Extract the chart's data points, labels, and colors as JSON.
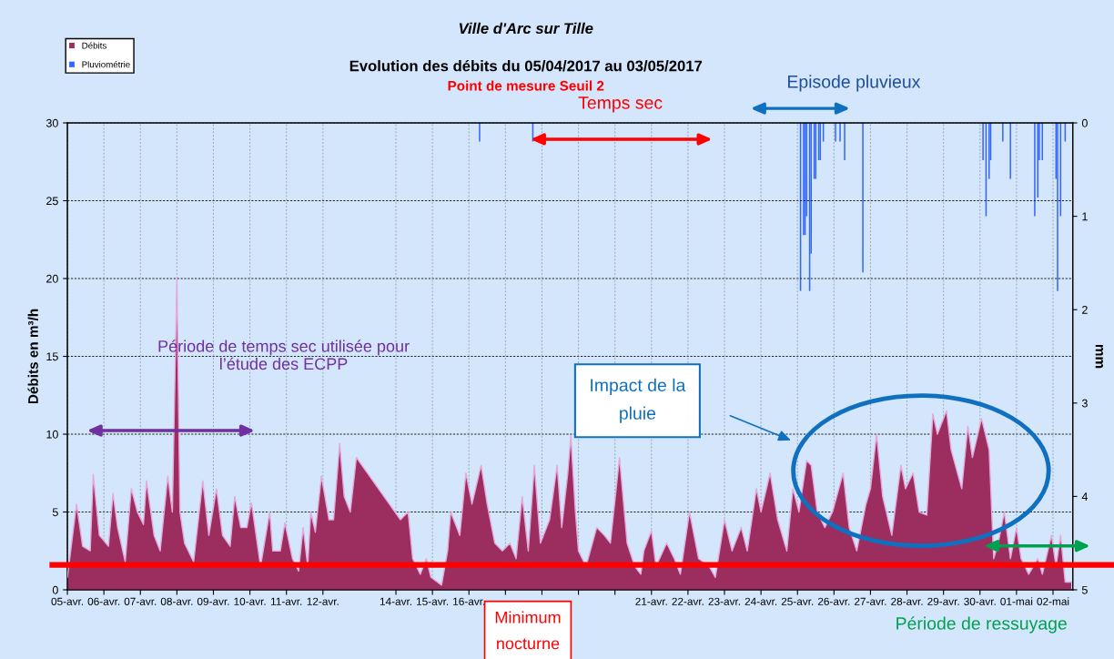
{
  "chart_data": {
    "type": "area",
    "title": "Ville d'Arc sur Tille",
    "subtitle": "Evolution des débits du 05/04/2017 au 03/05/2017",
    "ylabel": "Débits en m³/h",
    "y2label": "mm",
    "annotations": [
      "Point de mesure Seuil 2",
      "Temps sec",
      "Episode pluvieux",
      "Période de temps sec utilisée pour\nl’étude des ECPP",
      "Impact de la\npluie",
      "Période de ressuyage"
    ],
    "xlim": [
      "2017-04-05T00:00",
      "2017-05-02T13:00"
    ],
    "xticks": [
      {
        "value": "2017-04-05",
        "label": "05-avr."
      },
      {
        "value": "2017-04-06",
        "label": "06-avr."
      },
      {
        "value": "2017-04-07",
        "label": "07-avr."
      },
      {
        "value": "2017-04-08",
        "label": "08-avr."
      },
      {
        "value": "2017-04-09",
        "label": "09-avr."
      },
      {
        "value": "2017-04-10",
        "label": "10-avr."
      },
      {
        "value": "2017-04-11",
        "label": "11-avr."
      },
      {
        "value": "2017-04-12",
        "label": "12-avr."
      },
      {
        "value": "2017-04-14",
        "label": "14-avr."
      },
      {
        "value": "2017-04-15",
        "label": "15-avr."
      },
      {
        "value": "2017-04-16",
        "label": "16-avr."
      },
      {
        "value": "2017-04-17",
        "label": null
      },
      {
        "value": "2017-04-18",
        "label": null
      },
      {
        "value": "2017-04-19",
        "label": null
      },
      {
        "value": "2017-04-20",
        "label": null
      },
      {
        "value": "2017-04-21",
        "label": "21-avr."
      },
      {
        "value": "2017-04-22",
        "label": "22-avr."
      },
      {
        "value": "2017-04-23",
        "label": "23-avr."
      },
      {
        "value": "2017-04-24",
        "label": "24-avr."
      },
      {
        "value": "2017-04-25",
        "label": "25-avr."
      },
      {
        "value": "2017-04-26",
        "label": "26-avr."
      },
      {
        "value": "2017-04-27",
        "label": "27-avr."
      },
      {
        "value": "2017-04-28",
        "label": "28-avr."
      },
      {
        "value": "2017-04-29",
        "label": "29-avr."
      },
      {
        "value": "2017-04-30",
        "label": "30-avr."
      },
      {
        "value": "2017-05-01",
        "label": "01-mai"
      },
      {
        "value": "2017-05-02",
        "label": "02-mai"
      }
    ],
    "ylim": [
      0,
      30
    ],
    "yticks": [
      0,
      5,
      10,
      15,
      20,
      25,
      30
    ],
    "y2lim": [
      5,
      0
    ],
    "y2ticks": [
      0,
      1,
      2,
      3,
      4,
      5
    ],
    "grid": true,
    "legend": "top left",
    "ref_lines": [
      {
        "axis": "y",
        "value": 1.6,
        "label": "Minimum nocturne",
        "color": "#ff0000"
      }
    ],
    "series": [
      {
        "name": "Débits",
        "color": "#9b2d5f",
        "x": [
          "2017-04-05T00:00",
          "2017-04-05T06:00",
          "2017-04-05T10:00",
          "2017-04-05T15:00",
          "2017-04-05T17:00",
          "2017-04-05T21:00",
          "2017-04-06T03:00",
          "2017-04-06T06:00",
          "2017-04-06T09:00",
          "2017-04-06T14:00",
          "2017-04-06T18:00",
          "2017-04-06T22:00",
          "2017-04-07T02:00",
          "2017-04-07T04:00",
          "2017-04-07T09:00",
          "2017-04-07T13:00",
          "2017-04-07T18:00",
          "2017-04-07T21:00",
          "2017-04-08T00:00",
          "2017-04-08T02:00",
          "2017-04-08T05:00",
          "2017-04-08T11:00",
          "2017-04-08T17:00",
          "2017-04-08T21:00",
          "2017-04-09T02:00",
          "2017-04-09T06:00",
          "2017-04-09T11:00",
          "2017-04-09T14:00",
          "2017-04-09T18:00",
          "2017-04-09T22:00",
          "2017-04-10T01:00",
          "2017-04-10T07:00",
          "2017-04-10T13:00",
          "2017-04-10T15:00",
          "2017-04-10T20:00",
          "2017-04-10T23:00",
          "2017-04-11T04:00",
          "2017-04-11T08:00",
          "2017-04-11T11:00",
          "2017-04-11T14:00",
          "2017-04-11T16:00",
          "2017-04-11T19:00",
          "2017-04-11T23:00",
          "2017-04-12T04:00",
          "2017-04-12T07:00",
          "2017-04-12T11:00",
          "2017-04-12T14:00",
          "2017-04-12T18:00",
          "2017-04-12T22:00",
          "2017-04-14T03:00",
          "2017-04-14T08:00",
          "2017-04-14T11:00",
          "2017-04-14T16:00",
          "2017-04-14T20:00",
          "2017-04-14T23:00",
          "2017-04-15T06:00",
          "2017-04-15T10:00",
          "2017-04-15T12:00",
          "2017-04-15T18:00",
          "2017-04-15T22:00",
          "2017-04-16T02:00",
          "2017-04-16T08:00",
          "2017-04-16T12:00",
          "2017-04-16T17:00",
          "2017-04-16T22:00",
          "2017-04-17T03:00",
          "2017-04-17T07:00",
          "2017-04-17T11:00",
          "2017-04-17T15:00",
          "2017-04-17T19:00",
          "2017-04-17T23:00",
          "2017-04-18T05:00",
          "2017-04-18T10:00",
          "2017-04-18T13:00",
          "2017-04-18T17:00",
          "2017-04-18T19:00",
          "2017-04-18T22:00",
          "2017-04-19T00:00",
          "2017-04-19T05:00",
          "2017-04-19T12:00",
          "2017-04-19T17:00",
          "2017-04-19T21:00",
          "2017-04-20T03:00",
          "2017-04-20T08:00",
          "2017-04-20T13:00",
          "2017-04-20T17:00",
          "2017-04-20T19:00",
          "2017-04-21T00:00",
          "2017-04-21T03:00",
          "2017-04-21T10:00",
          "2017-04-21T15:00",
          "2017-04-21T19:00",
          "2017-04-22T01:00",
          "2017-04-22T07:00",
          "2017-04-22T14:00",
          "2017-04-22T18:00",
          "2017-04-23T00:00",
          "2017-04-23T05:00",
          "2017-04-23T11:00",
          "2017-04-23T15:00",
          "2017-04-23T21:00",
          "2017-04-24T00:00",
          "2017-04-24T06:00",
          "2017-04-24T11:00",
          "2017-04-24T17:00",
          "2017-04-24T21:00",
          "2017-04-25T01:00",
          "2017-04-25T06:00",
          "2017-04-25T09:00",
          "2017-04-25T13:00",
          "2017-04-25T18:00",
          "2017-04-25T23:00",
          "2017-04-26T06:00",
          "2017-04-26T10:00",
          "2017-04-26T15:00",
          "2017-04-26T21:00",
          "2017-04-27T00:00",
          "2017-04-27T04:00",
          "2017-04-27T08:00",
          "2017-04-27T14:00",
          "2017-04-27T20:00",
          "2017-04-27T23:00",
          "2017-04-28T04:00",
          "2017-04-28T08:00",
          "2017-04-28T13:00",
          "2017-04-28T17:00",
          "2017-04-28T20:00",
          "2017-04-29T02:00",
          "2017-04-29T05:00",
          "2017-04-29T12:00",
          "2017-04-29T16:00",
          "2017-04-29T19:00",
          "2017-04-30T01:00",
          "2017-04-30T06:00",
          "2017-04-30T09:00",
          "2017-04-30T12:00",
          "2017-04-30T16:00",
          "2017-04-30T20:00",
          "2017-05-01T00:00",
          "2017-05-01T03:00",
          "2017-05-01T08:00",
          "2017-05-01T14:00",
          "2017-05-01T17:00",
          "2017-05-01T23:00",
          "2017-05-02T02:00",
          "2017-05-02T05:00",
          "2017-05-02T08:00",
          "2017-05-02T12:00"
        ],
        "values": [
          0.8,
          5.5,
          2.8,
          2.5,
          7.4,
          3.5,
          2.8,
          6.2,
          4.0,
          1.8,
          6.5,
          5.0,
          4.2,
          7.0,
          3.5,
          2.5,
          7.3,
          5.0,
          20.0,
          5.0,
          3.0,
          1.8,
          7.0,
          3.5,
          6.5,
          3.5,
          2.8,
          6.0,
          4.0,
          4.0,
          5.6,
          1.5,
          5.0,
          2.5,
          2.5,
          4.3,
          2.0,
          1.2,
          4.0,
          1.5,
          5.0,
          3.7,
          7.3,
          4.5,
          4.5,
          9.4,
          6.0,
          5.0,
          8.5,
          4.5,
          5.0,
          2.0,
          1.0,
          2.0,
          0.8,
          0.3,
          2.5,
          5.0,
          3.5,
          7.5,
          5.5,
          8.0,
          5.5,
          3.0,
          2.5,
          3.0,
          2.0,
          6.0,
          2.5,
          8.0,
          3.0,
          4.5,
          8.0,
          4.0,
          7.5,
          9.9,
          5.0,
          2.5,
          1.5,
          4.0,
          3.5,
          3.0,
          8.5,
          3.0,
          1.5,
          1.0,
          2.5,
          3.8,
          1.5,
          3.0,
          2.0,
          1.0,
          5.0,
          2.0,
          1.5,
          0.8,
          4.5,
          2.5,
          4.0,
          2.5,
          6.5,
          5.0,
          7.5,
          4.5,
          2.5,
          6.5,
          5.0,
          8.3,
          8.0,
          5.0,
          4.0,
          5.0,
          7.5,
          4.0,
          2.5,
          5.5,
          6.5,
          10.0,
          6.0,
          3.5,
          8.0,
          6.5,
          7.5,
          5.0,
          4.8,
          11.3,
          10.0,
          11.5,
          9.0,
          6.5,
          10.5,
          8.5,
          11.0,
          9.0,
          2.0,
          3.0,
          5.0,
          2.0,
          4.0,
          2.0,
          1.0,
          2.0,
          1.0,
          3.5,
          1.5,
          3.5,
          0.5,
          0.5
        ]
      },
      {
        "name": "Pluviométrie",
        "type": "bar",
        "axis": "y2",
        "color": "#3366ff",
        "x": [
          "2017-04-16T07:00",
          "2017-04-17T18:00",
          "2017-04-25T02:00",
          "2017-04-25T04:00",
          "2017-04-25T05:00",
          "2017-04-25T06:00",
          "2017-04-25T08:00",
          "2017-04-25T09:00",
          "2017-04-25T11:00",
          "2017-04-25T12:00",
          "2017-04-25T14:00",
          "2017-04-25T15:00",
          "2017-04-25T17:00",
          "2017-04-26T01:00",
          "2017-04-26T04:00",
          "2017-04-26T07:00",
          "2017-04-26T19:00",
          "2017-04-30T02:00",
          "2017-04-30T04:00",
          "2017-04-30T06:00",
          "2017-04-30T07:00",
          "2017-04-30T15:00",
          "2017-04-30T20:00",
          "2017-05-01T12:00",
          "2017-05-01T14:00",
          "2017-05-01T15:00",
          "2017-05-01T17:00",
          "2017-05-02T02:00",
          "2017-05-02T03:00",
          "2017-05-02T05:00",
          "2017-05-02T08:00"
        ],
        "values": [
          0.2,
          0.2,
          1.8,
          1.2,
          1.2,
          1.0,
          1.8,
          1.4,
          0.6,
          0.6,
          0.4,
          0.4,
          0.2,
          0.2,
          0.2,
          0.4,
          1.6,
          0.4,
          1.0,
          0.6,
          0.4,
          0.2,
          0.6,
          1.0,
          0.8,
          0.4,
          0.4,
          0.6,
          1.8,
          1.0,
          0.2
        ]
      }
    ]
  }
}
